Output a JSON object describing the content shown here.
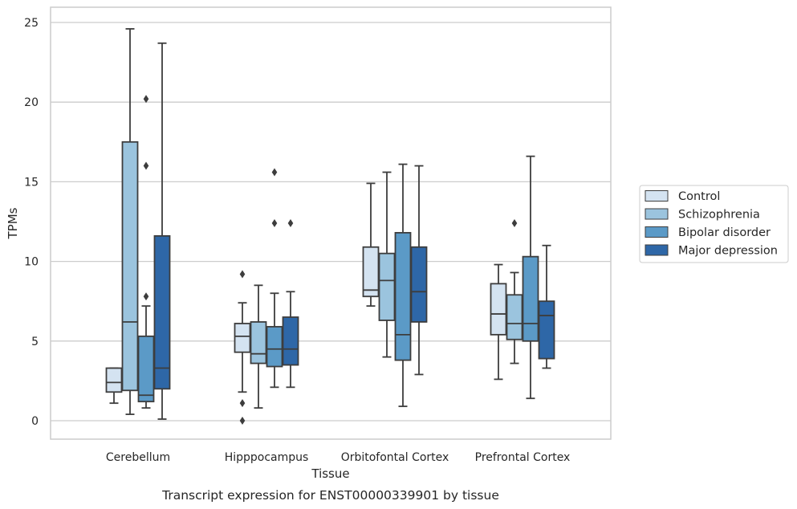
{
  "chart_data": {
    "type": "box",
    "title": "",
    "caption": "Transcript expression for ENST00000339901 by tissue",
    "xlabel": "Tissue",
    "ylabel": "TPMs",
    "ylim": [
      -1.2,
      25.9
    ],
    "yticks": [
      0,
      5,
      10,
      15,
      20,
      25
    ],
    "grid": "horizontal",
    "legend_position": "right",
    "categories": [
      "Cerebellum",
      "Hipppocampus",
      "Orbitofontal Cortex",
      "Prefrontal Cortex"
    ],
    "series": [
      {
        "name": "Control",
        "color": "#d4e3f1",
        "boxes": [
          {
            "whislo": 1.1,
            "q1": 1.8,
            "med": 2.4,
            "q3": 3.3,
            "whishi": 3.3,
            "fliers": []
          },
          {
            "whislo": 1.8,
            "q1": 4.3,
            "med": 5.3,
            "q3": 6.1,
            "whishi": 7.4,
            "fliers": [
              9.2,
              1.1,
              0.0
            ]
          },
          {
            "whislo": 7.2,
            "q1": 7.8,
            "med": 8.2,
            "q3": 10.9,
            "whishi": 14.9,
            "fliers": []
          },
          {
            "whislo": 2.6,
            "q1": 5.4,
            "med": 6.7,
            "q3": 8.6,
            "whishi": 9.8,
            "fliers": []
          }
        ]
      },
      {
        "name": "Schizophrenia",
        "color": "#9bc4de",
        "boxes": [
          {
            "whislo": 0.4,
            "q1": 1.9,
            "med": 6.2,
            "q3": 17.5,
            "whishi": 24.6,
            "fliers": []
          },
          {
            "whislo": 0.8,
            "q1": 3.6,
            "med": 4.2,
            "q3": 6.2,
            "whishi": 8.5,
            "fliers": []
          },
          {
            "whislo": 4.0,
            "q1": 6.3,
            "med": 8.8,
            "q3": 10.5,
            "whishi": 15.6,
            "fliers": []
          },
          {
            "whislo": 3.6,
            "q1": 5.1,
            "med": 6.1,
            "q3": 7.9,
            "whishi": 9.3,
            "fliers": [
              12.4
            ]
          }
        ]
      },
      {
        "name": "Bipolar disorder",
        "color": "#5b9ac7",
        "boxes": [
          {
            "whislo": 0.8,
            "q1": 1.2,
            "med": 1.6,
            "q3": 5.3,
            "whishi": 7.2,
            "fliers": [
              20.2,
              16.0,
              7.8
            ]
          },
          {
            "whislo": 2.1,
            "q1": 3.4,
            "med": 4.5,
            "q3": 5.9,
            "whishi": 8.0,
            "fliers": [
              15.6,
              12.4
            ]
          },
          {
            "whislo": 0.9,
            "q1": 3.8,
            "med": 5.4,
            "q3": 11.8,
            "whishi": 16.1,
            "fliers": []
          },
          {
            "whislo": 1.4,
            "q1": 5.0,
            "med": 6.1,
            "q3": 10.3,
            "whishi": 16.6,
            "fliers": []
          }
        ]
      },
      {
        "name": "Major depression",
        "color": "#2e67a7",
        "boxes": [
          {
            "whislo": 0.1,
            "q1": 2.0,
            "med": 3.3,
            "q3": 11.6,
            "whishi": 23.7,
            "fliers": []
          },
          {
            "whislo": 2.1,
            "q1": 3.5,
            "med": 4.5,
            "q3": 6.5,
            "whishi": 8.1,
            "fliers": [
              12.4
            ]
          },
          {
            "whislo": 2.9,
            "q1": 6.2,
            "med": 8.1,
            "q3": 10.9,
            "whishi": 16.0,
            "fliers": []
          },
          {
            "whislo": 3.3,
            "q1": 3.9,
            "med": 6.6,
            "q3": 7.5,
            "whishi": 11.0,
            "fliers": []
          }
        ]
      }
    ]
  }
}
